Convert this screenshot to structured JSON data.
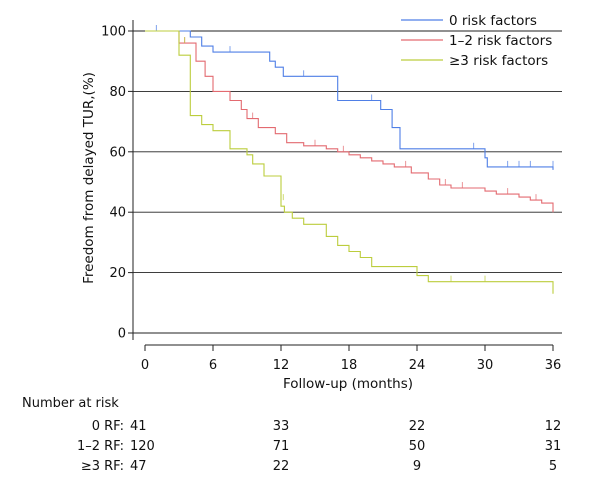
{
  "chart_data": {
    "type": "line",
    "subtype": "kaplan-meier",
    "title": "",
    "xlabel": "Follow-up (months)",
    "ylabel": "Freedom from delayed TUR,(%)",
    "xlim": [
      0,
      36
    ],
    "ylim": [
      0,
      100
    ],
    "x_ticks": [
      0,
      6,
      12,
      18,
      24,
      30,
      36
    ],
    "y_ticks": [
      0,
      20,
      40,
      60,
      80,
      100
    ],
    "grid": "horizontal",
    "legend_position": "top-right",
    "series": [
      {
        "name": "0 risk factors",
        "color": "#4f7fe6",
        "steps": [
          [
            0,
            100
          ],
          [
            4,
            100
          ],
          [
            4,
            98
          ],
          [
            5,
            98
          ],
          [
            5,
            95
          ],
          [
            6,
            95
          ],
          [
            6,
            93
          ],
          [
            11,
            93
          ],
          [
            11,
            90
          ],
          [
            11.5,
            90
          ],
          [
            11.5,
            88
          ],
          [
            12.2,
            88
          ],
          [
            12.2,
            85
          ],
          [
            17,
            85
          ],
          [
            17,
            77
          ],
          [
            20.8,
            77
          ],
          [
            20.8,
            74
          ],
          [
            21.8,
            74
          ],
          [
            21.8,
            68
          ],
          [
            22.5,
            68
          ],
          [
            22.5,
            61
          ],
          [
            30,
            61
          ],
          [
            30,
            58
          ],
          [
            30.2,
            58
          ],
          [
            30.2,
            55
          ],
          [
            36,
            55
          ],
          [
            36,
            54
          ]
        ],
        "censored": [
          [
            1,
            100
          ],
          [
            7.5,
            93
          ],
          [
            14,
            85
          ],
          [
            20,
            77
          ],
          [
            29,
            61
          ],
          [
            32,
            55
          ],
          [
            33,
            55
          ],
          [
            34,
            55
          ],
          [
            36,
            55
          ]
        ]
      },
      {
        "name": "1–2 risk factors",
        "color": "#e36a70",
        "steps": [
          [
            0,
            100
          ],
          [
            3,
            100
          ],
          [
            3,
            96
          ],
          [
            4.5,
            96
          ],
          [
            4.5,
            90
          ],
          [
            5.3,
            90
          ],
          [
            5.3,
            85
          ],
          [
            6,
            85
          ],
          [
            6,
            80
          ],
          [
            7.5,
            80
          ],
          [
            7.5,
            77
          ],
          [
            8.5,
            77
          ],
          [
            8.5,
            74
          ],
          [
            9,
            74
          ],
          [
            9,
            71
          ],
          [
            10,
            71
          ],
          [
            10,
            68
          ],
          [
            11.5,
            68
          ],
          [
            11.5,
            66
          ],
          [
            12.5,
            66
          ],
          [
            12.5,
            63
          ],
          [
            14,
            63
          ],
          [
            14,
            62
          ],
          [
            16,
            62
          ],
          [
            16,
            61
          ],
          [
            17,
            61
          ],
          [
            17,
            60
          ],
          [
            18,
            60
          ],
          [
            18,
            59
          ],
          [
            19,
            59
          ],
          [
            19,
            58
          ],
          [
            20,
            58
          ],
          [
            20,
            57
          ],
          [
            21,
            57
          ],
          [
            21,
            56
          ],
          [
            22,
            56
          ],
          [
            22,
            55
          ],
          [
            23.5,
            55
          ],
          [
            23.5,
            53
          ],
          [
            25,
            53
          ],
          [
            25,
            51
          ],
          [
            26,
            51
          ],
          [
            26,
            49
          ],
          [
            27,
            49
          ],
          [
            27,
            48
          ],
          [
            30,
            48
          ],
          [
            30,
            47
          ],
          [
            31,
            47
          ],
          [
            31,
            46
          ],
          [
            33,
            46
          ],
          [
            33,
            45
          ],
          [
            34,
            45
          ],
          [
            34,
            44
          ],
          [
            35,
            44
          ],
          [
            35,
            43
          ],
          [
            36,
            43
          ],
          [
            36,
            40
          ]
        ],
        "censored": [
          [
            3.5,
            96
          ],
          [
            9.5,
            71
          ],
          [
            15,
            62
          ],
          [
            17.5,
            60
          ],
          [
            23,
            55
          ],
          [
            26.5,
            49
          ],
          [
            28,
            48
          ],
          [
            32,
            46
          ],
          [
            34.5,
            44
          ]
        ]
      },
      {
        "name": "≥3 risk factors",
        "color": "#bccd3d",
        "steps": [
          [
            0,
            100
          ],
          [
            3,
            100
          ],
          [
            3,
            92
          ],
          [
            4,
            92
          ],
          [
            4,
            72
          ],
          [
            5,
            72
          ],
          [
            5,
            69
          ],
          [
            6,
            69
          ],
          [
            6,
            67
          ],
          [
            7.5,
            67
          ],
          [
            7.5,
            61
          ],
          [
            9,
            61
          ],
          [
            9,
            59
          ],
          [
            9.5,
            59
          ],
          [
            9.5,
            56
          ],
          [
            10.5,
            56
          ],
          [
            10.5,
            52
          ],
          [
            12,
            52
          ],
          [
            12,
            42
          ],
          [
            12.3,
            42
          ],
          [
            12.3,
            40
          ],
          [
            13,
            40
          ],
          [
            13,
            38
          ],
          [
            14,
            38
          ],
          [
            14,
            36
          ],
          [
            16,
            36
          ],
          [
            16,
            32
          ],
          [
            17,
            32
          ],
          [
            17,
            29
          ],
          [
            18,
            29
          ],
          [
            18,
            27
          ],
          [
            19,
            27
          ],
          [
            19,
            25
          ],
          [
            20,
            25
          ],
          [
            20,
            22
          ],
          [
            24,
            22
          ],
          [
            24,
            19
          ],
          [
            25,
            19
          ],
          [
            25,
            17
          ],
          [
            36,
            17
          ],
          [
            36,
            13
          ]
        ],
        "censored": [
          [
            3.5,
            96
          ],
          [
            12.2,
            44
          ],
          [
            27,
            17
          ],
          [
            30,
            17
          ]
        ]
      }
    ],
    "risk_table": {
      "title": "Number at risk",
      "times": [
        0,
        12,
        24,
        36
      ],
      "rows": [
        {
          "label": "0 RF:",
          "values": [
            "41",
            "33",
            "22",
            "12"
          ]
        },
        {
          "label": "1–2 RF:",
          "values": [
            "120",
            "71",
            "50",
            "31"
          ]
        },
        {
          "label": "≥3 RF:",
          "values": [
            "47",
            "22",
            "9",
            "5"
          ]
        }
      ]
    }
  }
}
